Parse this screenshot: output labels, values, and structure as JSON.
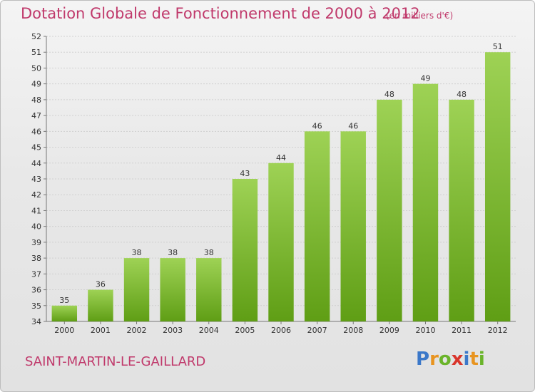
{
  "header": {
    "title": "Dotation Globale de Fonctionnement de 2000 à 2012",
    "subtitle": "(en milliers d'€)"
  },
  "footer": {
    "commune": "SAINT-MARTIN-LE-GAILLARD",
    "logo_text": "Proxiti",
    "logo_colors": [
      "#3b78c9",
      "#e89420",
      "#6ab42a",
      "#d9352b",
      "#3b78c9",
      "#e89420",
      "#6ab42a"
    ]
  },
  "chart_data": {
    "type": "bar",
    "title": "Dotation Globale de Fonctionnement de 2000 à 2012",
    "subtitle": "(en milliers d'€)",
    "categories": [
      "2000",
      "2001",
      "2002",
      "2003",
      "2004",
      "2005",
      "2006",
      "2007",
      "2008",
      "2009",
      "2010",
      "2011",
      "2012"
    ],
    "values": [
      35,
      36,
      38,
      38,
      38,
      43,
      44,
      46,
      46,
      48,
      49,
      48,
      51
    ],
    "ylim": [
      34,
      52
    ],
    "yticks": [
      34,
      35,
      36,
      37,
      38,
      39,
      40,
      41,
      42,
      43,
      44,
      45,
      46,
      47,
      48,
      49,
      50,
      51,
      52
    ],
    "grid": true,
    "bar_color_top": "#9ed255",
    "bar_color_bottom": "#5f9e15",
    "legend": "none"
  }
}
